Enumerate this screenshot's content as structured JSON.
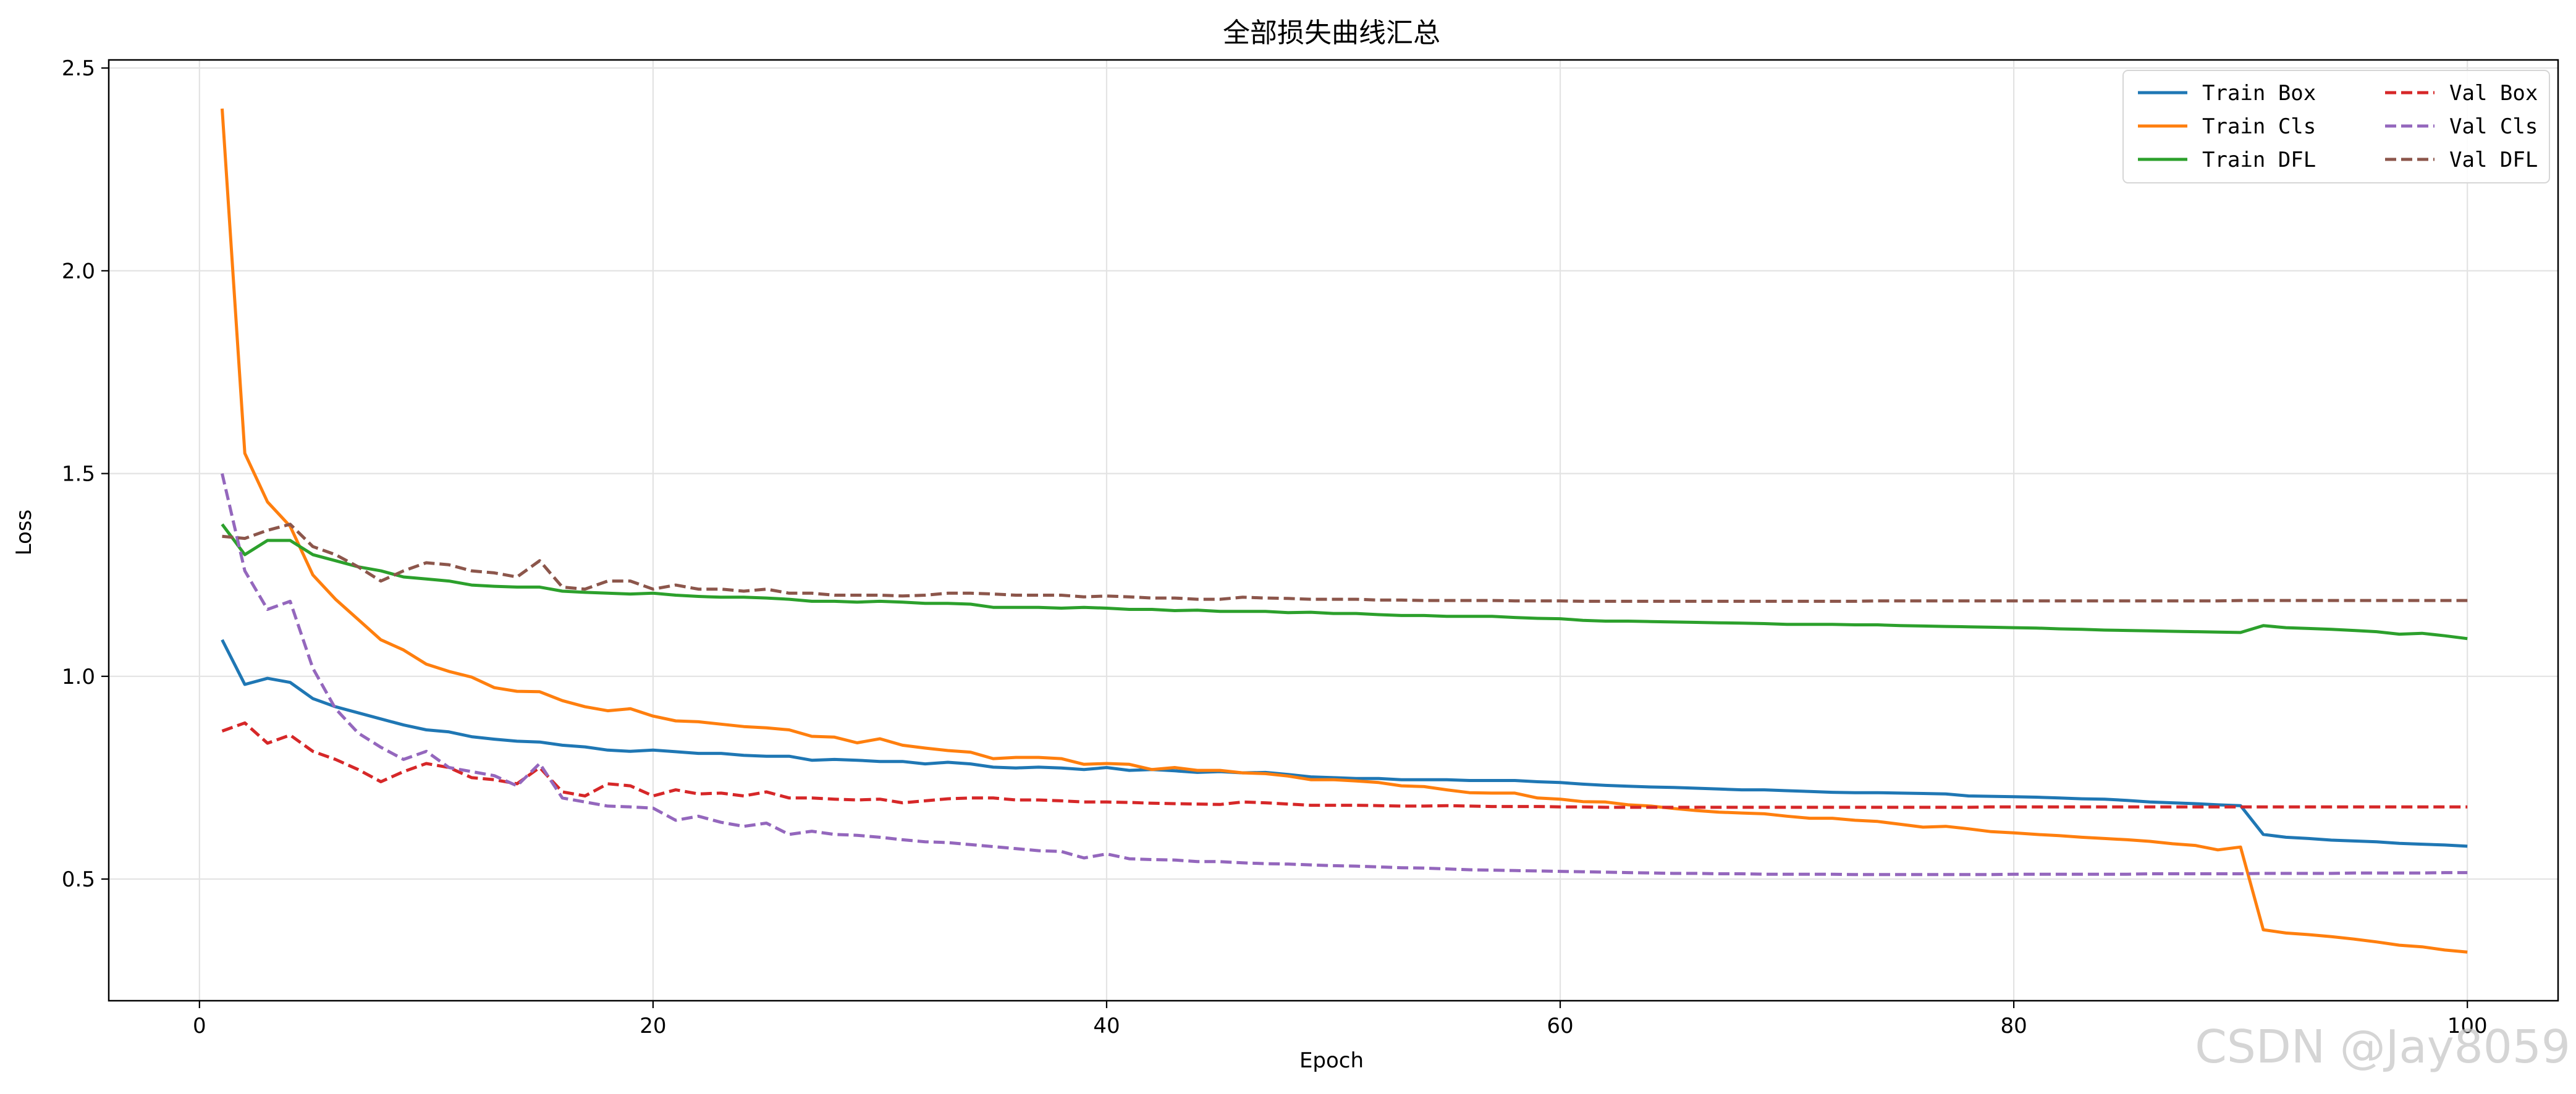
{
  "watermark": "CSDN @Jay8059",
  "chart_data": {
    "type": "line",
    "title": "全部损失曲线汇总",
    "xlabel": "Epoch",
    "ylabel": "Loss",
    "xlim": [
      -4,
      104
    ],
    "ylim": [
      0.2,
      2.52
    ],
    "xticks": [
      0,
      20,
      40,
      60,
      80,
      100
    ],
    "yticks": [
      0.5,
      1.0,
      1.5,
      2.0,
      2.5
    ],
    "xtick_labels": [
      "0",
      "20",
      "40",
      "60",
      "80",
      "100"
    ],
    "ytick_labels": [
      "0.5",
      "1.0",
      "1.5",
      "2.0",
      "2.5"
    ],
    "grid": true,
    "legend_position": "top-right",
    "x": [
      1,
      2,
      3,
      4,
      5,
      6,
      7,
      8,
      9,
      10,
      11,
      12,
      13,
      14,
      15,
      16,
      17,
      18,
      19,
      20,
      21,
      22,
      23,
      24,
      25,
      26,
      27,
      28,
      29,
      30,
      31,
      32,
      33,
      34,
      35,
      36,
      37,
      38,
      39,
      40,
      41,
      42,
      43,
      44,
      45,
      46,
      47,
      48,
      49,
      50,
      51,
      52,
      53,
      54,
      55,
      56,
      57,
      58,
      59,
      60,
      61,
      62,
      63,
      64,
      65,
      66,
      67,
      68,
      69,
      70,
      71,
      72,
      73,
      74,
      75,
      76,
      77,
      78,
      79,
      80,
      81,
      82,
      83,
      84,
      85,
      86,
      87,
      88,
      89,
      90,
      91,
      92,
      93,
      94,
      95,
      96,
      97,
      98,
      99,
      100
    ],
    "series": [
      {
        "name": "Train Box",
        "color": "#1f77b4",
        "dash": "solid",
        "values": [
          1.09,
          0.98,
          0.995,
          0.985,
          0.945,
          0.925,
          0.91,
          0.895,
          0.88,
          0.868,
          0.863,
          0.851,
          0.845,
          0.84,
          0.838,
          0.83,
          0.826,
          0.818,
          0.815,
          0.818,
          0.814,
          0.81,
          0.81,
          0.805,
          0.803,
          0.803,
          0.793,
          0.795,
          0.793,
          0.79,
          0.79,
          0.784,
          0.788,
          0.784,
          0.776,
          0.774,
          0.776,
          0.774,
          0.77,
          0.775,
          0.768,
          0.77,
          0.767,
          0.763,
          0.765,
          0.762,
          0.763,
          0.758,
          0.752,
          0.75,
          0.748,
          0.748,
          0.745,
          0.745,
          0.745,
          0.743,
          0.743,
          0.743,
          0.74,
          0.738,
          0.734,
          0.731,
          0.729,
          0.727,
          0.726,
          0.724,
          0.722,
          0.72,
          0.72,
          0.718,
          0.716,
          0.714,
          0.713,
          0.713,
          0.712,
          0.711,
          0.71,
          0.705,
          0.704,
          0.703,
          0.702,
          0.7,
          0.698,
          0.697,
          0.694,
          0.69,
          0.688,
          0.686,
          0.683,
          0.681,
          0.61,
          0.603,
          0.6,
          0.596,
          0.594,
          0.592,
          0.588,
          0.586,
          0.584,
          0.581
        ]
      },
      {
        "name": "Train Cls",
        "color": "#ff7f0e",
        "dash": "solid",
        "values": [
          2.4,
          1.55,
          1.43,
          1.37,
          1.25,
          1.19,
          1.14,
          1.09,
          1.065,
          1.03,
          1.012,
          0.998,
          0.972,
          0.963,
          0.962,
          0.94,
          0.925,
          0.915,
          0.92,
          0.902,
          0.89,
          0.888,
          0.882,
          0.876,
          0.873,
          0.868,
          0.852,
          0.85,
          0.836,
          0.846,
          0.83,
          0.823,
          0.817,
          0.813,
          0.797,
          0.8,
          0.8,
          0.797,
          0.783,
          0.785,
          0.783,
          0.77,
          0.775,
          0.768,
          0.768,
          0.762,
          0.76,
          0.754,
          0.745,
          0.745,
          0.742,
          0.738,
          0.73,
          0.728,
          0.72,
          0.713,
          0.712,
          0.712,
          0.7,
          0.697,
          0.691,
          0.69,
          0.683,
          0.68,
          0.674,
          0.669,
          0.665,
          0.663,
          0.661,
          0.655,
          0.65,
          0.65,
          0.645,
          0.642,
          0.635,
          0.628,
          0.63,
          0.624,
          0.617,
          0.614,
          0.61,
          0.607,
          0.603,
          0.6,
          0.597,
          0.593,
          0.587,
          0.583,
          0.572,
          0.579,
          0.375,
          0.367,
          0.363,
          0.358,
          0.352,
          0.345,
          0.337,
          0.333,
          0.325,
          0.32
        ]
      },
      {
        "name": "Train DFL",
        "color": "#2ca02c",
        "dash": "solid",
        "values": [
          1.375,
          1.3,
          1.335,
          1.335,
          1.3,
          1.285,
          1.27,
          1.26,
          1.245,
          1.24,
          1.235,
          1.225,
          1.222,
          1.22,
          1.22,
          1.21,
          1.207,
          1.205,
          1.203,
          1.205,
          1.2,
          1.197,
          1.195,
          1.195,
          1.193,
          1.19,
          1.185,
          1.185,
          1.183,
          1.185,
          1.183,
          1.18,
          1.18,
          1.178,
          1.17,
          1.17,
          1.17,
          1.168,
          1.17,
          1.168,
          1.165,
          1.165,
          1.162,
          1.163,
          1.16,
          1.16,
          1.16,
          1.157,
          1.158,
          1.155,
          1.155,
          1.152,
          1.15,
          1.15,
          1.148,
          1.148,
          1.148,
          1.145,
          1.143,
          1.142,
          1.138,
          1.136,
          1.136,
          1.135,
          1.134,
          1.133,
          1.132,
          1.131,
          1.13,
          1.128,
          1.128,
          1.128,
          1.127,
          1.127,
          1.125,
          1.124,
          1.123,
          1.122,
          1.121,
          1.12,
          1.119,
          1.117,
          1.116,
          1.114,
          1.113,
          1.112,
          1.111,
          1.11,
          1.109,
          1.108,
          1.125,
          1.12,
          1.118,
          1.116,
          1.113,
          1.11,
          1.104,
          1.106,
          1.1,
          1.093
        ]
      },
      {
        "name": "Val Box",
        "color": "#d62728",
        "dash": "dashed",
        "values": [
          0.865,
          0.885,
          0.835,
          0.855,
          0.815,
          0.795,
          0.77,
          0.74,
          0.765,
          0.785,
          0.775,
          0.75,
          0.745,
          0.735,
          0.775,
          0.715,
          0.705,
          0.735,
          0.73,
          0.705,
          0.72,
          0.71,
          0.712,
          0.705,
          0.715,
          0.7,
          0.7,
          0.697,
          0.695,
          0.697,
          0.688,
          0.693,
          0.698,
          0.7,
          0.7,
          0.695,
          0.695,
          0.693,
          0.69,
          0.69,
          0.689,
          0.687,
          0.686,
          0.685,
          0.684,
          0.69,
          0.688,
          0.685,
          0.682,
          0.682,
          0.682,
          0.681,
          0.68,
          0.68,
          0.681,
          0.68,
          0.679,
          0.679,
          0.679,
          0.678,
          0.678,
          0.677,
          0.677,
          0.677,
          0.677,
          0.677,
          0.677,
          0.677,
          0.677,
          0.677,
          0.677,
          0.677,
          0.677,
          0.677,
          0.677,
          0.677,
          0.677,
          0.677,
          0.678,
          0.678,
          0.678,
          0.678,
          0.678,
          0.678,
          0.678,
          0.678,
          0.678,
          0.678,
          0.678,
          0.678,
          0.678,
          0.678,
          0.678,
          0.678,
          0.678,
          0.678,
          0.678,
          0.678,
          0.678,
          0.678
        ]
      },
      {
        "name": "Val Cls",
        "color": "#9467bd",
        "dash": "dashed",
        "values": [
          1.5,
          1.26,
          1.165,
          1.185,
          1.02,
          0.92,
          0.86,
          0.825,
          0.795,
          0.815,
          0.775,
          0.765,
          0.755,
          0.73,
          0.785,
          0.7,
          0.69,
          0.68,
          0.678,
          0.675,
          0.645,
          0.655,
          0.64,
          0.63,
          0.638,
          0.61,
          0.618,
          0.61,
          0.608,
          0.603,
          0.597,
          0.592,
          0.59,
          0.585,
          0.58,
          0.575,
          0.57,
          0.568,
          0.552,
          0.562,
          0.55,
          0.548,
          0.547,
          0.543,
          0.543,
          0.54,
          0.538,
          0.537,
          0.535,
          0.533,
          0.532,
          0.53,
          0.528,
          0.527,
          0.525,
          0.523,
          0.522,
          0.521,
          0.52,
          0.519,
          0.518,
          0.517,
          0.516,
          0.515,
          0.514,
          0.514,
          0.513,
          0.513,
          0.512,
          0.512,
          0.512,
          0.512,
          0.511,
          0.511,
          0.511,
          0.511,
          0.511,
          0.511,
          0.511,
          0.512,
          0.512,
          0.512,
          0.512,
          0.512,
          0.512,
          0.513,
          0.513,
          0.513,
          0.513,
          0.513,
          0.514,
          0.514,
          0.514,
          0.514,
          0.515,
          0.515,
          0.515,
          0.515,
          0.516,
          0.516
        ]
      },
      {
        "name": "Val DFL",
        "color": "#8c564b",
        "dash": "dashed",
        "values": [
          1.345,
          1.34,
          1.36,
          1.375,
          1.32,
          1.3,
          1.27,
          1.235,
          1.26,
          1.28,
          1.275,
          1.26,
          1.255,
          1.245,
          1.285,
          1.22,
          1.215,
          1.235,
          1.235,
          1.215,
          1.225,
          1.215,
          1.215,
          1.21,
          1.215,
          1.205,
          1.205,
          1.2,
          1.2,
          1.2,
          1.198,
          1.2,
          1.205,
          1.205,
          1.203,
          1.2,
          1.2,
          1.2,
          1.196,
          1.198,
          1.196,
          1.193,
          1.193,
          1.19,
          1.19,
          1.195,
          1.193,
          1.192,
          1.19,
          1.19,
          1.19,
          1.188,
          1.188,
          1.187,
          1.187,
          1.187,
          1.187,
          1.186,
          1.186,
          1.186,
          1.185,
          1.185,
          1.185,
          1.185,
          1.185,
          1.185,
          1.185,
          1.185,
          1.185,
          1.185,
          1.185,
          1.185,
          1.185,
          1.186,
          1.186,
          1.186,
          1.186,
          1.186,
          1.186,
          1.186,
          1.186,
          1.186,
          1.186,
          1.186,
          1.186,
          1.186,
          1.186,
          1.186,
          1.186,
          1.187,
          1.187,
          1.187,
          1.187,
          1.187,
          1.187,
          1.187,
          1.187,
          1.187,
          1.187,
          1.187
        ]
      }
    ]
  }
}
